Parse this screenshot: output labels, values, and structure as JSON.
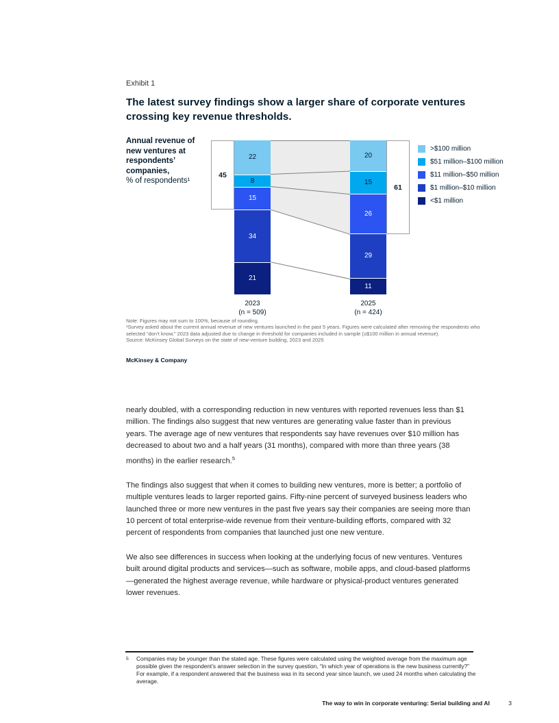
{
  "page": {
    "exhibit_label": "Exhibit 1",
    "title": "The latest survey findings show a larger share of corporate ventures crossing key revenue thresholds.",
    "brand": "McKinsey & Company",
    "footer": {
      "title": "The way to win in corporate venturing: Serial building and AI",
      "page_number": "3"
    }
  },
  "chart_data": {
    "type": "bar",
    "stacked": true,
    "title_lines": [
      "Annual revenue of",
      "new ventures at",
      "respondents’",
      "companies,"
    ],
    "subtitle": "% of respondents¹",
    "categories": [
      "2023",
      "2025"
    ],
    "category_sublabels": [
      "(n = 509)",
      "(n = 424)"
    ],
    "series": [
      {
        "name": ">$100 million",
        "color": "#79C9F1",
        "label_color": "dark",
        "values": [
          22,
          20
        ]
      },
      {
        "name": "$51 million–$100 million",
        "color": "#00A8EF",
        "label_color": "dark",
        "values": [
          8,
          15
        ]
      },
      {
        "name": "$11 million–$50 million",
        "color": "#2B54F2",
        "label_color": "white",
        "values": [
          15,
          26
        ]
      },
      {
        "name": "$1 million–$10 million",
        "color": "#1E3FC2",
        "label_color": "white",
        "values": [
          34,
          29
        ]
      },
      {
        "name": "<$1 million",
        "color": "#0B2080",
        "label_color": "white",
        "values": [
          21,
          11
        ]
      }
    ],
    "brackets": [
      {
        "side": "left",
        "value": 45,
        "span_series_count": 3
      },
      {
        "side": "right",
        "value": 61,
        "span_series_count": 3
      }
    ],
    "connector_fill": "#ECECEC",
    "connector_line_color": "#808080",
    "legend_position": "right",
    "ylim": [
      0,
      100
    ]
  },
  "notes": {
    "lines": [
      "Note: Figures may not sum to 100%, because of rounding.",
      "¹Survey asked about the current annual revenue of new ventures launched in the past 5 years. Figures were calculated after removing the respondents who",
      "selected “don’t know.” 2023 data adjusted due to change in threshold for companies included in sample (≥$100 million in annual revenue).",
      "Source: McKinsey Global Surveys on the state of new-venture building, 2023 and 2025"
    ]
  },
  "body": {
    "paragraphs": [
      "nearly doubled, with a corresponding reduction in new ventures with reported revenues less than $1 million. The findings also suggest that new ventures are generating value faster than in previous years. The average age of new ventures that respondents say have revenues over $10 million has decreased to about two and a half years (31 months), compared with more than three years (38 months) in the earlier research.",
      "The findings also suggest that when it comes to building new ventures, more is better; a portfolio of multiple ventures leads to larger reported gains. Fifty-nine percent of surveyed business leaders who launched three or more new ventures in the past five years say their companies are seeing more than 10 percent of total enterprise-wide revenue from their venture-building efforts, compared with 32 percent of respondents from companies that launched just one new venture.",
      "We also see differences in success when looking at the underlying focus of new ventures. Ventures built around digital products and services—such as software, mobile apps, and cloud-based platforms—generated the highest average revenue, while hardware or physical-product ventures generated lower revenues."
    ],
    "footnote_ref": "5"
  },
  "footnote": {
    "marker": "5",
    "text": "Companies may be younger than the stated age. These figures were calculated using the weighted average from the maximum age possible given the respondent’s answer selection in the survey question, “In which year of operations is the new business currently?” For example, if a respondent answered that the business was in its second year since launch, we used 24 months when calculating the average."
  }
}
